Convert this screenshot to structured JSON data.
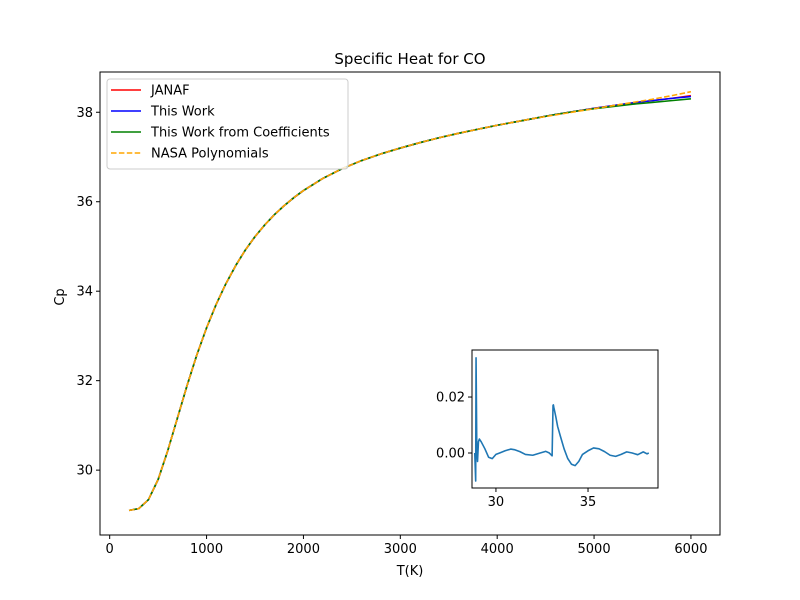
{
  "chart_data": [
    {
      "id": "main",
      "type": "line",
      "title": "Specific Heat for CO",
      "xlabel": "T(K)",
      "ylabel": "Cp",
      "xlim": [
        -100,
        6300
      ],
      "ylim": [
        28.55,
        38.9
      ],
      "xticks": [
        0,
        1000,
        2000,
        3000,
        4000,
        5000,
        6000
      ],
      "xtick_labels": [
        "0",
        "1000",
        "2000",
        "3000",
        "4000",
        "5000",
        "6000"
      ],
      "yticks": [
        30,
        32,
        34,
        36,
        38
      ],
      "ytick_labels": [
        "30",
        "32",
        "34",
        "36",
        "38"
      ],
      "grid": false,
      "legend_position": "top-left",
      "series": [
        {
          "name": "JANAF",
          "color": "#ff0000",
          "style": "solid",
          "x": [
            200,
            300,
            400,
            500,
            600,
            700,
            800,
            900,
            1000,
            1100,
            1200,
            1300,
            1400,
            1500,
            1600,
            1700,
            1800,
            1900,
            2000,
            2200,
            2400,
            2600,
            2800,
            3000,
            3200,
            3400,
            3600,
            3800,
            4000,
            4200,
            4400,
            4600,
            4800,
            5000,
            5200,
            5400,
            5600,
            5800,
            6000
          ],
          "y": [
            29.1,
            29.14,
            29.34,
            29.79,
            30.44,
            31.17,
            31.9,
            32.58,
            33.18,
            33.71,
            34.17,
            34.57,
            34.92,
            35.22,
            35.48,
            35.71,
            35.91,
            36.09,
            36.25,
            36.52,
            36.74,
            36.92,
            37.07,
            37.2,
            37.32,
            37.43,
            37.53,
            37.62,
            37.71,
            37.79,
            37.87,
            37.95,
            38.02,
            38.09,
            38.15,
            38.21,
            38.26,
            38.31,
            38.37
          ]
        },
        {
          "name": "This Work",
          "color": "#0000ff",
          "style": "solid",
          "x": [
            200,
            300,
            400,
            500,
            600,
            700,
            800,
            900,
            1000,
            1100,
            1200,
            1300,
            1400,
            1500,
            1600,
            1700,
            1800,
            1900,
            2000,
            2200,
            2400,
            2600,
            2800,
            3000,
            3200,
            3400,
            3600,
            3800,
            4000,
            4200,
            4400,
            4600,
            4800,
            5000,
            5200,
            5400,
            5600,
            5800,
            6000
          ],
          "y": [
            29.1,
            29.14,
            29.34,
            29.79,
            30.44,
            31.17,
            31.9,
            32.58,
            33.18,
            33.71,
            34.17,
            34.57,
            34.92,
            35.22,
            35.48,
            35.71,
            35.91,
            36.09,
            36.25,
            36.52,
            36.74,
            36.92,
            37.07,
            37.2,
            37.32,
            37.43,
            37.53,
            37.62,
            37.71,
            37.79,
            37.87,
            37.95,
            38.02,
            38.09,
            38.15,
            38.21,
            38.26,
            38.31,
            38.35
          ]
        },
        {
          "name": "This Work from Coefficients",
          "color": "#008000",
          "style": "solid",
          "x": [
            200,
            300,
            400,
            500,
            600,
            700,
            800,
            900,
            1000,
            1100,
            1200,
            1300,
            1400,
            1500,
            1600,
            1700,
            1800,
            1900,
            2000,
            2200,
            2400,
            2600,
            2800,
            3000,
            3200,
            3400,
            3600,
            3800,
            4000,
            4200,
            4400,
            4600,
            4800,
            5000,
            5200,
            5400,
            5600,
            5800,
            6000
          ],
          "y": [
            29.1,
            29.14,
            29.34,
            29.79,
            30.44,
            31.17,
            31.9,
            32.58,
            33.18,
            33.71,
            34.17,
            34.57,
            34.92,
            35.22,
            35.48,
            35.71,
            35.91,
            36.09,
            36.25,
            36.52,
            36.74,
            36.92,
            37.07,
            37.2,
            37.32,
            37.43,
            37.53,
            37.62,
            37.71,
            37.79,
            37.87,
            37.95,
            38.02,
            38.08,
            38.13,
            38.18,
            38.22,
            38.26,
            38.3
          ]
        },
        {
          "name": "NASA Polynomials",
          "color": "#ffa500",
          "style": "dashed",
          "x": [
            200,
            300,
            400,
            500,
            600,
            700,
            800,
            900,
            1000,
            1100,
            1200,
            1300,
            1400,
            1500,
            1600,
            1700,
            1800,
            1900,
            2000,
            2200,
            2400,
            2600,
            2800,
            3000,
            3200,
            3400,
            3600,
            3800,
            4000,
            4200,
            4400,
            4600,
            4800,
            5000,
            5200,
            5400,
            5600,
            5800,
            6000
          ],
          "y": [
            29.1,
            29.14,
            29.34,
            29.79,
            30.44,
            31.17,
            31.9,
            32.58,
            33.18,
            33.71,
            34.17,
            34.57,
            34.92,
            35.22,
            35.48,
            35.71,
            35.91,
            36.09,
            36.25,
            36.52,
            36.74,
            36.92,
            37.07,
            37.2,
            37.32,
            37.43,
            37.53,
            37.62,
            37.71,
            37.79,
            37.87,
            37.94,
            38.01,
            38.08,
            38.15,
            38.22,
            38.29,
            38.37,
            38.46
          ]
        }
      ]
    },
    {
      "id": "inset",
      "type": "line",
      "title": "",
      "xlabel": "",
      "ylabel": "",
      "xlim": [
        28.7,
        38.8
      ],
      "ylim": [
        -0.0125,
        0.0368
      ],
      "xticks": [
        30,
        35
      ],
      "xtick_labels": [
        "30",
        "35"
      ],
      "yticks": [
        0,
        0.02
      ],
      "ytick_labels": [
        "0.00",
        "0.02"
      ],
      "grid": false,
      "series": [
        {
          "color": "#1f77b4",
          "style": "solid",
          "x": [
            28.85,
            28.9,
            28.92,
            28.96,
            29.0,
            29.05,
            29.1,
            29.2,
            29.4,
            29.6,
            29.8,
            30.0,
            30.2,
            30.5,
            30.8,
            31.0,
            31.3,
            31.6,
            32.0,
            32.4,
            32.7,
            32.9,
            33.05,
            33.1,
            33.12,
            33.15,
            33.17,
            33.25,
            33.35,
            33.5,
            33.7,
            33.9,
            34.1,
            34.3,
            34.5,
            34.7,
            35.0,
            35.3,
            35.6,
            35.9,
            36.2,
            36.5,
            36.8,
            37.1,
            37.4,
            37.7,
            38.0,
            38.2,
            38.3
          ],
          "y": [
            0.0,
            -0.01,
            0.034,
            0.002,
            -0.003,
            0.004,
            0.005,
            0.004,
            0.0015,
            -0.0015,
            -0.002,
            -0.0005,
            0.0,
            0.0008,
            0.0014,
            0.0012,
            0.0005,
            -0.0005,
            -0.0008,
            0.0,
            0.0006,
            0.0,
            -0.001,
            0.017,
            0.0172,
            0.016,
            0.0155,
            0.013,
            0.0095,
            0.006,
            0.0015,
            -0.002,
            -0.004,
            -0.0045,
            -0.003,
            -0.0005,
            0.0008,
            0.0018,
            0.0015,
            0.0005,
            -0.0008,
            -0.0012,
            -0.0005,
            0.0004,
            0.0,
            -0.0006,
            0.0004,
            -0.0003,
            0.0
          ]
        }
      ]
    }
  ]
}
